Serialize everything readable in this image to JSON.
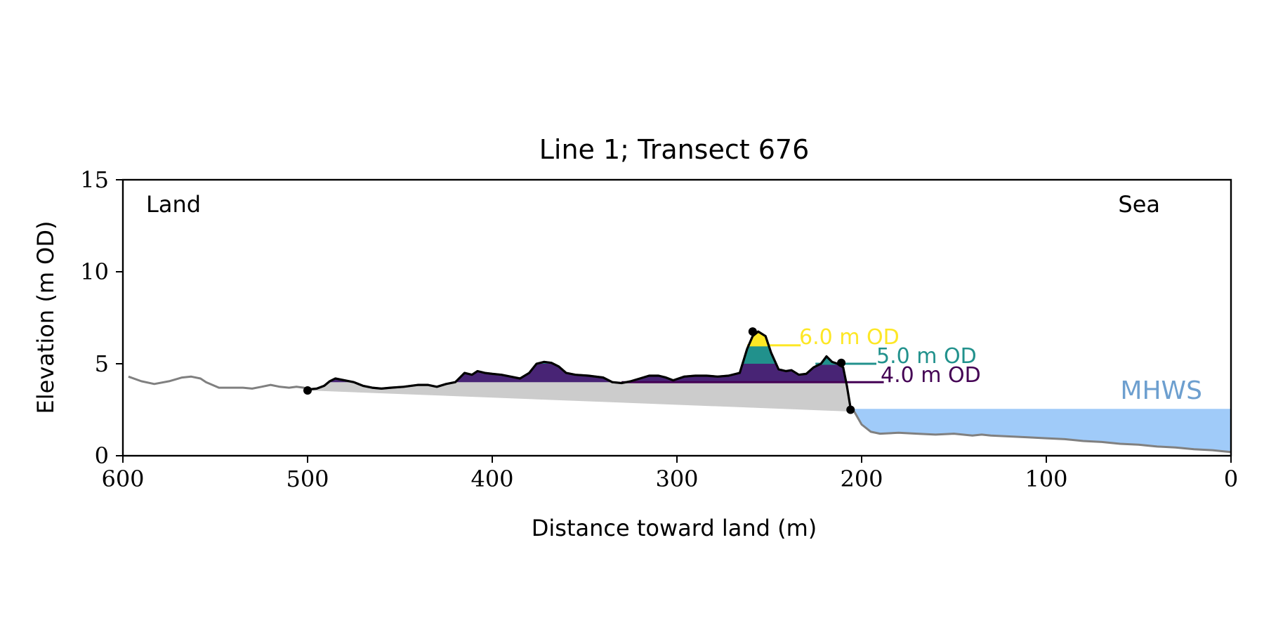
{
  "chart_data": {
    "type": "area",
    "title": "Line 1; Transect 676",
    "xlabel": "Distance toward land (m)",
    "ylabel": "Elevation (m OD)",
    "xlim": [
      600,
      0
    ],
    "ylim": [
      0,
      15
    ],
    "x_ticks": [
      600,
      500,
      400,
      300,
      200,
      100,
      0
    ],
    "y_ticks": [
      0,
      5,
      10,
      15
    ],
    "grid": false,
    "annotations": {
      "land_label": "Land",
      "sea_label": "Sea",
      "mhws_label": "MHWS"
    },
    "mhws": {
      "elevation": 2.55,
      "color": "#a0cbf9",
      "label_color": "#6d9fcf"
    },
    "profile": {
      "x": [
        597,
        590,
        583,
        575,
        568,
        563,
        558,
        555,
        548,
        542,
        535,
        530,
        525,
        520,
        515,
        510,
        506,
        502,
        500,
        495,
        491,
        488,
        485,
        480,
        475,
        470,
        465,
        460,
        455,
        448,
        440,
        435,
        430,
        425,
        420,
        415,
        411,
        408,
        404,
        400,
        395,
        390,
        385,
        380,
        376,
        372,
        368,
        364,
        360,
        355,
        348,
        340,
        335,
        330,
        325,
        320,
        315,
        310,
        306,
        302,
        296,
        290,
        284,
        278,
        272,
        266,
        262,
        259,
        256,
        252,
        249,
        245,
        241,
        238,
        234,
        230,
        226,
        222,
        219,
        216,
        213,
        210,
        208,
        206,
        204,
        200,
        195,
        190,
        180,
        170,
        160,
        150,
        140,
        135,
        130,
        120,
        110,
        100,
        90,
        80,
        70,
        60,
        50,
        40,
        30,
        20,
        10,
        5,
        0
      ],
      "y": [
        4.3,
        4.05,
        3.9,
        4.05,
        4.25,
        4.3,
        4.2,
        4.0,
        3.7,
        3.7,
        3.7,
        3.65,
        3.75,
        3.85,
        3.75,
        3.7,
        3.75,
        3.7,
        3.6,
        3.65,
        3.8,
        4.05,
        4.2,
        4.1,
        4.0,
        3.8,
        3.7,
        3.65,
        3.7,
        3.75,
        3.85,
        3.85,
        3.75,
        3.9,
        4.0,
        4.5,
        4.4,
        4.6,
        4.5,
        4.45,
        4.4,
        4.3,
        4.2,
        4.5,
        5.0,
        5.1,
        5.05,
        4.85,
        4.5,
        4.4,
        4.35,
        4.25,
        4.0,
        3.95,
        4.05,
        4.2,
        4.35,
        4.35,
        4.25,
        4.1,
        4.3,
        4.35,
        4.35,
        4.3,
        4.35,
        4.5,
        5.8,
        6.5,
        6.75,
        6.5,
        5.6,
        4.7,
        4.6,
        4.65,
        4.4,
        4.45,
        4.8,
        5.0,
        5.4,
        5.1,
        5.0,
        4.8,
        3.8,
        2.6,
        2.4,
        1.7,
        1.3,
        1.2,
        1.25,
        1.2,
        1.15,
        1.2,
        1.1,
        1.15,
        1.1,
        1.05,
        1.0,
        0.95,
        0.9,
        0.8,
        0.75,
        0.65,
        0.6,
        0.5,
        0.45,
        0.35,
        0.3,
        0.25,
        0.2
      ],
      "color": "#808080",
      "highlight_range": [
        500,
        205
      ],
      "highlight_color": "#000000"
    },
    "baseline_fill": {
      "x": [
        500,
        205
      ],
      "y": [
        3.55,
        2.4
      ],
      "color": "#cccccc"
    },
    "markers": [
      {
        "x": 500,
        "y": 3.55
      },
      {
        "x": 259,
        "y": 6.75
      },
      {
        "x": 211,
        "y": 5.05
      },
      {
        "x": 206,
        "y": 2.5
      }
    ],
    "thresholds": [
      {
        "level": 4.0,
        "label": "4.0 m OD",
        "color": "#440154",
        "fill": "#482475",
        "line_from": 330,
        "line_to": 188
      },
      {
        "level": 5.0,
        "label": "5.0 m OD",
        "color": "#21918c",
        "fill": "#21918c",
        "line_from": 225,
        "line_to": 192
      },
      {
        "level": 6.0,
        "label": "6.0 m OD",
        "color": "#fde725",
        "fill": "#fde725",
        "line_from": 262,
        "line_to": 233
      }
    ]
  }
}
